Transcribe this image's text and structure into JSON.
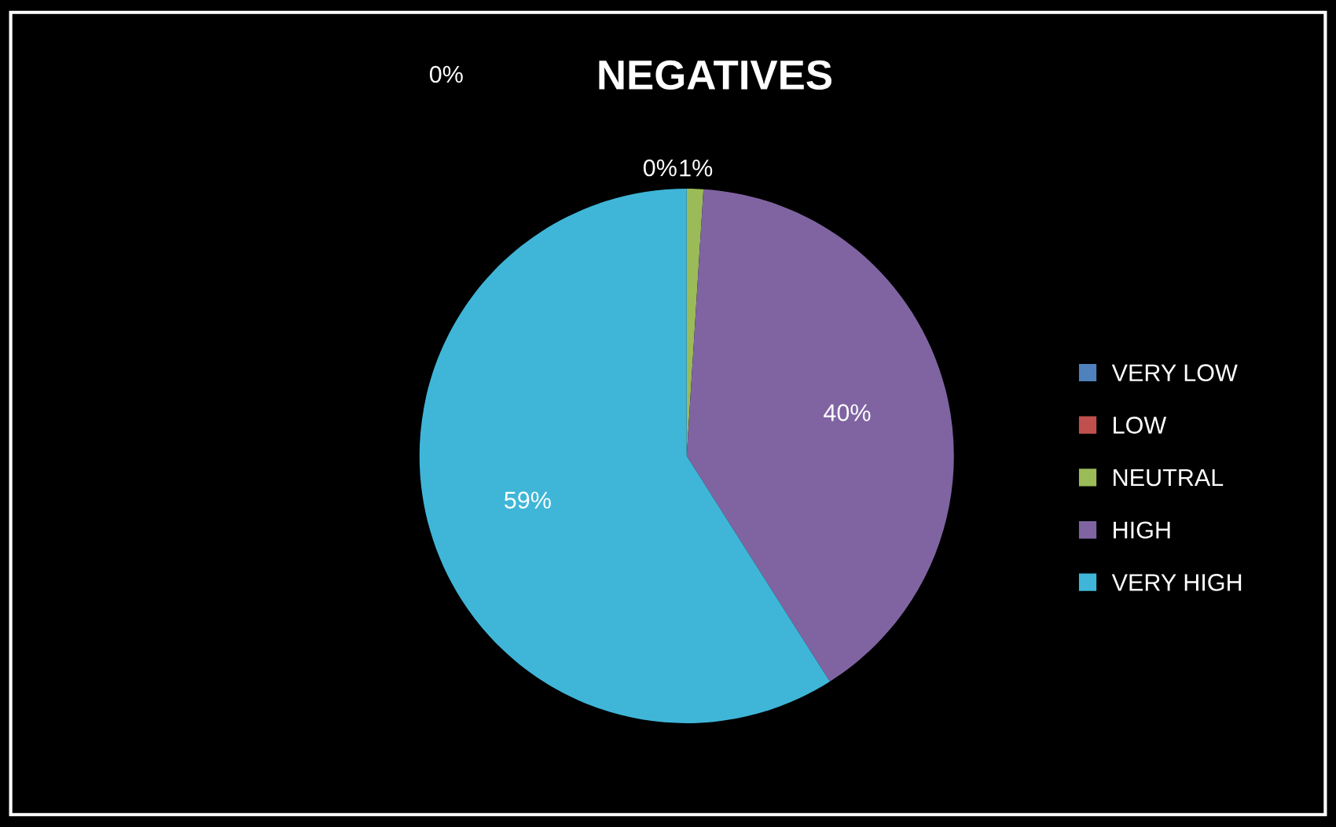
{
  "chart_data": {
    "type": "pie",
    "title": "NEGATIVES",
    "categories": [
      "VERY LOW",
      "LOW",
      "NEUTRAL",
      "HIGH",
      "VERY HIGH"
    ],
    "values": [
      0,
      0,
      1,
      40,
      59
    ],
    "colors": [
      "#4f81bd",
      "#c0504d",
      "#9bbb59",
      "#8064a2",
      "#3fb6d8"
    ],
    "value_labels": [
      "0%",
      "0%",
      "1%",
      "40%",
      "59%"
    ],
    "legend": "right"
  }
}
